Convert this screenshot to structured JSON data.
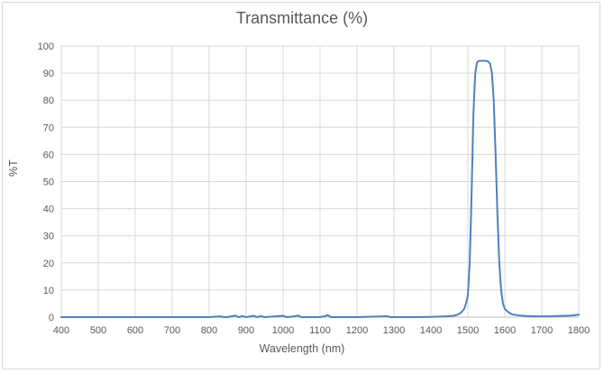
{
  "chart_data": {
    "type": "line",
    "title": "Transmittance (%)",
    "xlabel": "Wavelength (nm)",
    "ylabel": "%T",
    "xlim": [
      400,
      1800
    ],
    "ylim": [
      0,
      100
    ],
    "x_ticks": [
      400,
      500,
      600,
      700,
      800,
      900,
      1000,
      1100,
      1200,
      1300,
      1400,
      1500,
      1600,
      1700,
      1800
    ],
    "y_ticks": [
      0,
      10,
      20,
      30,
      40,
      50,
      60,
      70,
      80,
      90,
      100
    ],
    "x_tick_labels": [
      "400",
      "500",
      "600",
      "700",
      "800",
      "900",
      "1000",
      "1100",
      "1200",
      "1300",
      "1400",
      "1500",
      "1600",
      "1700",
      "1800"
    ],
    "y_tick_labels": [
      "0",
      "10",
      "20",
      "30",
      "40",
      "50",
      "60",
      "70",
      "80",
      "90",
      "100"
    ],
    "grid": true,
    "legend": "none",
    "series": [
      {
        "color": "#4f81bd",
        "x": [
          400,
          500,
          600,
          700,
          800,
          830,
          840,
          850,
          870,
          880,
          890,
          900,
          920,
          930,
          940,
          950,
          980,
          1000,
          1010,
          1030,
          1040,
          1050,
          1100,
          1115,
          1120,
          1130,
          1200,
          1270,
          1280,
          1290,
          1350,
          1400,
          1420,
          1440,
          1460,
          1470,
          1480,
          1490,
          1495,
          1500,
          1505,
          1510,
          1515,
          1520,
          1525,
          1530,
          1535,
          1540,
          1545,
          1550,
          1555,
          1560,
          1565,
          1570,
          1575,
          1580,
          1585,
          1590,
          1595,
          1600,
          1610,
          1620,
          1640,
          1660,
          1680,
          1700,
          1720,
          1740,
          1760,
          1780,
          1800
        ],
        "y": [
          0,
          0,
          0,
          0,
          0,
          0.3,
          0,
          0,
          0.6,
          0,
          0.4,
          0,
          0.5,
          0,
          0.4,
          0,
          0.3,
          0.5,
          0,
          0.3,
          0.6,
          0,
          0,
          0.4,
          0.8,
          0,
          0,
          0.3,
          0.4,
          0,
          0,
          0.1,
          0.2,
          0.3,
          0.5,
          0.8,
          1.5,
          3,
          5,
          8,
          20,
          45,
          75,
          90,
          94,
          94.5,
          94.5,
          94.5,
          94.5,
          94.5,
          94.2,
          93.5,
          90,
          80,
          60,
          38,
          20,
          10,
          5,
          3,
          1.8,
          1,
          0.6,
          0.4,
          0.3,
          0.3,
          0.3,
          0.4,
          0.5,
          0.6,
          0.9
        ]
      }
    ]
  }
}
